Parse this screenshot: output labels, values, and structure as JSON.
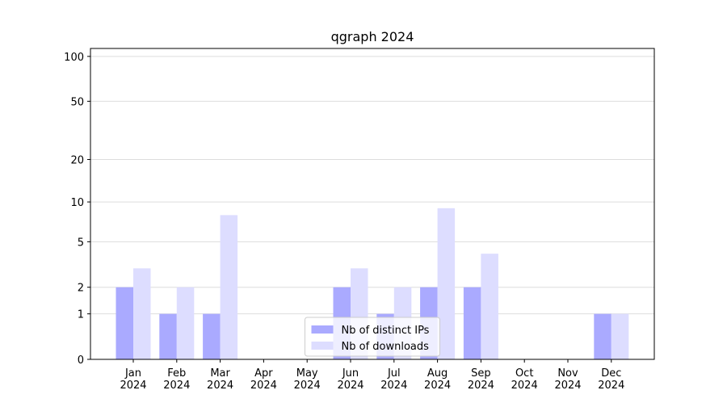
{
  "chart_data": {
    "type": "bar",
    "title": "qgraph 2024",
    "categories": [
      "Jan\n2024",
      "Feb\n2024",
      "Mar\n2024",
      "Apr\n2024",
      "May\n2024",
      "Jun\n2024",
      "Jul\n2024",
      "Aug\n2024",
      "Sep\n2024",
      "Oct\n2024",
      "Nov\n2024",
      "Dec\n2024"
    ],
    "series": [
      {
        "name": "Nb of distinct IPs",
        "color": "#aaaaff",
        "values": [
          2,
          1,
          1,
          0,
          0,
          2,
          1,
          2,
          2,
          0,
          0,
          1
        ]
      },
      {
        "name": "Nb of downloads",
        "color": "#ddddff",
        "values": [
          3,
          2,
          8,
          0,
          0,
          3,
          2,
          9,
          4,
          0,
          0,
          1
        ]
      }
    ],
    "yscale": "symlog",
    "ylim": [
      0,
      113
    ],
    "yticks": [
      0,
      1,
      2,
      5,
      10,
      20,
      50,
      100
    ],
    "grid": true,
    "legend": "lower center"
  }
}
